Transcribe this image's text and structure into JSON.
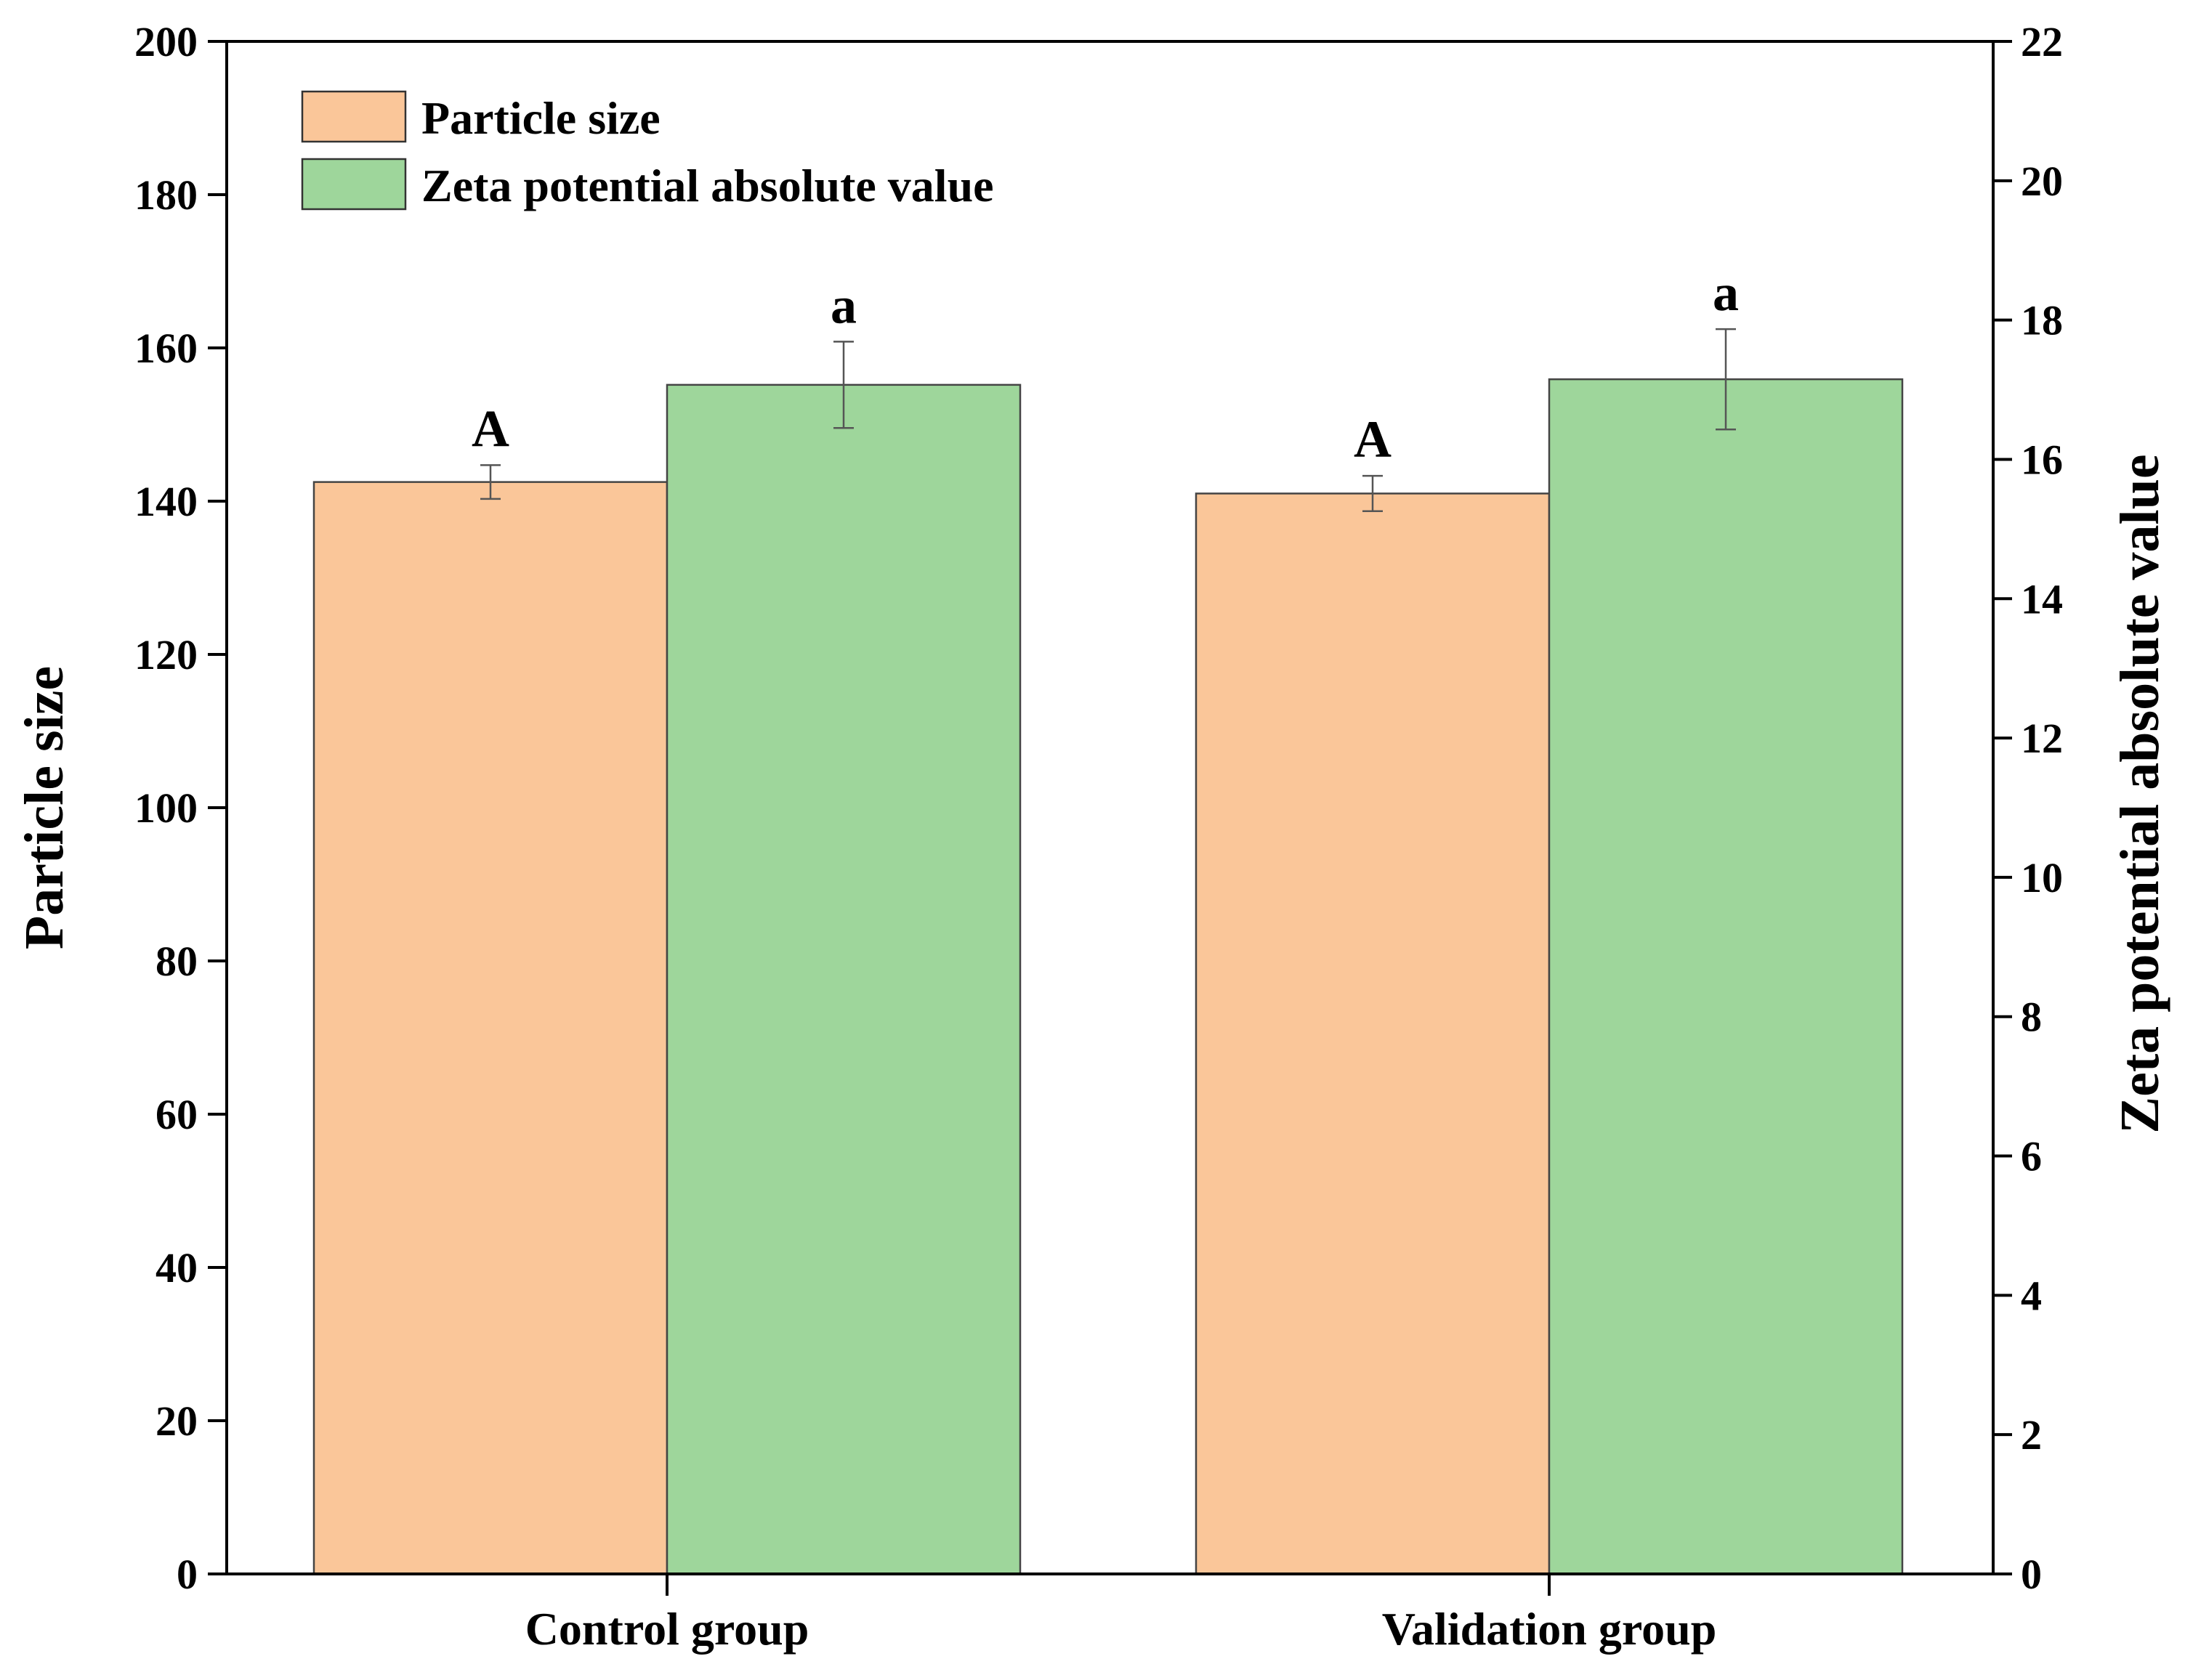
{
  "chart_data": {
    "type": "bar",
    "categories": [
      "Control group",
      "Validation group"
    ],
    "series": [
      {
        "name": "Particle size",
        "axis": "left",
        "color": "#FAC699",
        "values": [
          142.5,
          141.0
        ],
        "errors": [
          2.2,
          2.3
        ],
        "significance": [
          "A",
          "A"
        ]
      },
      {
        "name": "Zeta potential absolute value",
        "axis": "right",
        "color": "#9ED69B",
        "values": [
          17.07,
          17.15
        ],
        "errors": [
          0.62,
          0.72
        ],
        "significance": [
          "a",
          "a"
        ]
      }
    ],
    "ylabel": "Particle size",
    "y2label": "Zeta potential absolute value",
    "xlabel": "",
    "ylim": [
      0,
      200
    ],
    "y2lim": [
      0,
      22
    ],
    "yticks": [
      "0",
      "20",
      "40",
      "60",
      "80",
      "100",
      "120",
      "140",
      "160",
      "180",
      "200"
    ],
    "y2ticks": [
      "0",
      "2",
      "4",
      "6",
      "8",
      "10",
      "12",
      "14",
      "16",
      "18",
      "20",
      "22"
    ],
    "legend": {
      "position": "top-left",
      "entries": [
        "Particle size",
        "Zeta potential absolute value"
      ]
    },
    "grid": false
  }
}
